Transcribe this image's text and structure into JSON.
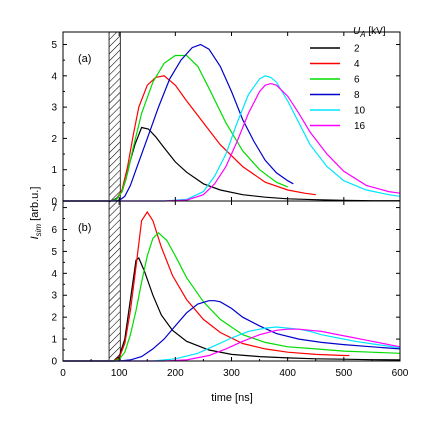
{
  "chart_data": {
    "type": "line",
    "xlabel": "time [ns]",
    "ylabel_main": "I",
    "ylabel_sub": "sim",
    "ylabel_tail": " [arb.u.]",
    "xlim": [
      0,
      600
    ],
    "x_ticks": [
      0,
      100,
      200,
      300,
      400,
      500,
      600
    ],
    "grid": false,
    "hatched_region": [
      82,
      102
    ],
    "legend": {
      "title_main": "U",
      "title_sub": "A",
      "title_tail": " [kV]",
      "placement": "top-right"
    },
    "panels": [
      {
        "label": "(a)",
        "ylim": [
          0,
          5.4
        ],
        "y_ticks": [
          0,
          1,
          2,
          3,
          4,
          5
        ],
        "series": [
          {
            "name": "2",
            "color": "#000000",
            "x": [
              0,
              85,
              95,
              105,
              112,
              120,
              128,
              140,
              152,
              165,
              180,
              200,
              220,
              250,
              280,
              320,
              360,
              400,
              450,
              500,
              550,
              600
            ],
            "y": [
              0,
              0,
              0.08,
              0.3,
              0.7,
              1.3,
              1.8,
              2.35,
              2.3,
              2.05,
              1.7,
              1.25,
              0.92,
              0.55,
              0.35,
              0.2,
              0.12,
              0.07,
              0.04,
              0.02,
              0.01,
              0.01
            ]
          },
          {
            "name": "4",
            "color": "#ff0000",
            "x": [
              0,
              85,
              95,
              105,
              115,
              125,
              135,
              150,
              165,
              180,
              200,
              220,
              250,
              280,
              320,
              360,
              400,
              430,
              450
            ],
            "y": [
              0,
              0,
              0.05,
              0.35,
              1.1,
              2.1,
              3.0,
              3.7,
              3.95,
              4.0,
              3.7,
              3.2,
              2.5,
              1.8,
              1.1,
              0.6,
              0.35,
              0.25,
              0.2
            ]
          },
          {
            "name": "6",
            "color": "#00dd00",
            "x": [
              0,
              85,
              95,
              105,
              115,
              125,
              140,
              160,
              180,
              200,
              220,
              240,
              260,
              290,
              320,
              350,
              380,
              400
            ],
            "y": [
              0,
              0,
              0.05,
              0.3,
              0.9,
              1.7,
              2.8,
              3.8,
              4.4,
              4.65,
              4.65,
              4.3,
              3.6,
              2.5,
              1.6,
              1.0,
              0.6,
              0.45
            ]
          },
          {
            "name": "8",
            "color": "#0000cc",
            "x": [
              0,
              90,
              100,
              110,
              120,
              130,
              150,
              170,
              190,
              210,
              230,
              245,
              260,
              280,
              300,
              320,
              340,
              360,
              380,
              400,
              410
            ],
            "y": [
              0,
              0,
              0.02,
              0.15,
              0.5,
              1.0,
              2.0,
              3.0,
              3.9,
              4.5,
              4.9,
              5.0,
              4.85,
              4.3,
              3.5,
              2.6,
              1.9,
              1.3,
              0.9,
              0.65,
              0.55
            ]
          },
          {
            "name": "10",
            "color": "#00e5ff",
            "x": [
              0,
              180,
              220,
              250,
              270,
              290,
              310,
              330,
              350,
              360,
              370,
              380,
              400,
              420,
              440,
              470,
              500,
              540,
              580,
              600
            ],
            "y": [
              0,
              0,
              0.05,
              0.3,
              0.8,
              1.5,
              2.5,
              3.4,
              3.9,
              4.0,
              3.95,
              3.8,
              3.2,
              2.5,
              1.8,
              1.1,
              0.65,
              0.35,
              0.2,
              0.15
            ]
          },
          {
            "name": "16",
            "color": "#ff00ff",
            "x": [
              0,
              180,
              220,
              250,
              270,
              290,
              310,
              330,
              350,
              360,
              370,
              380,
              400,
              420,
              440,
              470,
              500,
              540,
              580,
              600
            ],
            "y": [
              0,
              0,
              0.03,
              0.2,
              0.55,
              1.1,
              1.9,
              2.8,
              3.5,
              3.7,
              3.75,
              3.7,
              3.35,
              2.8,
              2.2,
              1.5,
              0.95,
              0.5,
              0.3,
              0.25
            ]
          }
        ]
      },
      {
        "label": "(b)",
        "ylim": [
          0,
          7.3
        ],
        "y_ticks": [
          0,
          1,
          2,
          3,
          4,
          5,
          6,
          7
        ],
        "series": [
          {
            "name": "2",
            "color": "#000000",
            "x": [
              0,
              90,
              100,
              110,
              120,
              130,
              135,
              145,
              160,
              175,
              195,
              220,
              260,
              300,
              350,
              400,
              450,
              500,
              550,
              600
            ],
            "y": [
              0,
              0,
              0.2,
              1.0,
              2.8,
              4.6,
              4.7,
              4.1,
              3.0,
              2.1,
              1.4,
              0.9,
              0.5,
              0.3,
              0.2,
              0.14,
              0.1,
              0.08,
              0.06,
              0.05
            ]
          },
          {
            "name": "4",
            "color": "#ff0000",
            "x": [
              0,
              90,
              100,
              110,
              120,
              130,
              140,
              150,
              160,
              175,
              195,
              220,
              250,
              280,
              320,
              360,
              400,
              450,
              500,
              510
            ],
            "y": [
              0,
              0,
              0.15,
              0.8,
              2.3,
              4.3,
              6.4,
              6.8,
              6.4,
              5.2,
              3.9,
              2.8,
              1.9,
              1.3,
              0.8,
              0.55,
              0.4,
              0.3,
              0.25,
              0.25
            ]
          },
          {
            "name": "6",
            "color": "#00dd00",
            "x": [
              0,
              90,
              100,
              110,
              120,
              130,
              140,
              150,
              160,
              170,
              185,
              200,
              220,
              250,
              280,
              320,
              360,
              400,
              450,
              500,
              550,
              600
            ],
            "y": [
              0,
              0,
              0.08,
              0.4,
              1.2,
              2.3,
              3.6,
              4.8,
              5.6,
              5.85,
              5.5,
              4.8,
              3.8,
              2.7,
              1.9,
              1.2,
              0.85,
              0.65,
              0.55,
              0.45,
              0.4,
              0.35
            ]
          },
          {
            "name": "8",
            "color": "#0000cc",
            "x": [
              0,
              100,
              120,
              140,
              160,
              180,
              200,
              220,
              240,
              260,
              270,
              280,
              300,
              320,
              350,
              380,
              420,
              460,
              500,
              550,
              600
            ],
            "y": [
              0,
              0,
              0.05,
              0.2,
              0.55,
              1.0,
              1.6,
              2.2,
              2.6,
              2.75,
              2.75,
              2.7,
              2.4,
              2.0,
              1.6,
              1.25,
              1.0,
              0.85,
              0.75,
              0.65,
              0.55
            ]
          },
          {
            "name": "10",
            "color": "#00e5ff",
            "x": [
              0,
              160,
              200,
              240,
              270,
              300,
              330,
              360,
              380,
              400,
              420,
              440,
              460,
              490,
              520,
              560,
              600
            ],
            "y": [
              0,
              0,
              0.1,
              0.35,
              0.7,
              1.05,
              1.35,
              1.5,
              1.55,
              1.5,
              1.45,
              1.35,
              1.2,
              1.05,
              0.9,
              0.75,
              0.6
            ]
          },
          {
            "name": "16",
            "color": "#ff00ff",
            "x": [
              0,
              180,
              220,
              260,
              290,
              320,
              350,
              380,
              400,
              420,
              440,
              460,
              480,
              510,
              540,
              570,
              600
            ],
            "y": [
              0,
              0,
              0.05,
              0.25,
              0.55,
              0.9,
              1.2,
              1.4,
              1.45,
              1.45,
              1.4,
              1.35,
              1.25,
              1.1,
              0.95,
              0.8,
              0.65
            ]
          }
        ]
      }
    ]
  }
}
